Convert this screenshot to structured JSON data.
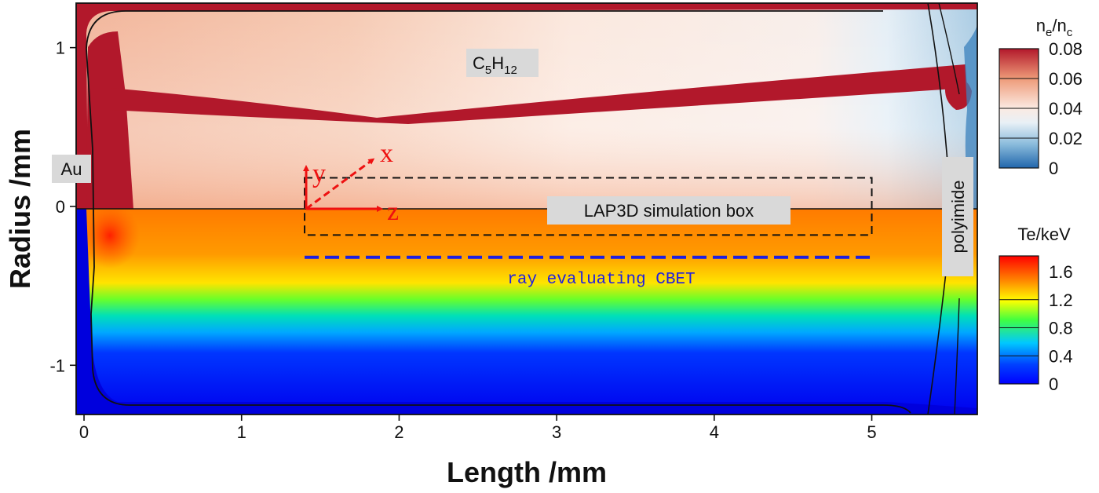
{
  "chart_data": {
    "type": "heatmap",
    "xlabel": "Length /mm",
    "ylabel": "Radius /mm",
    "xlim": [
      -0.05,
      5.67
    ],
    "ylim": [
      -1.31,
      1.28
    ],
    "x_ticks": [
      {
        "value": 0,
        "label": "0"
      },
      {
        "value": 1,
        "label": "1"
      },
      {
        "value": 2,
        "label": "2"
      },
      {
        "value": 3,
        "label": "3"
      },
      {
        "value": 4,
        "label": "4"
      },
      {
        "value": 5,
        "label": "5"
      }
    ],
    "y_ticks": [
      {
        "value": 1,
        "label": "1"
      },
      {
        "value": 0,
        "label": "0"
      },
      {
        "value": -1,
        "label": "-1"
      }
    ],
    "panels": [
      {
        "region": "upper half (Radius > 0)",
        "quantity": "ne/nc",
        "colormap": "diverging blue-white-red",
        "colors": [
          "#2166ac",
          "#6aa8d0",
          "#e8f0f6",
          "#f9e0d0",
          "#ee9a78",
          "#b2182b"
        ]
      },
      {
        "region": "lower half (Radius < 0)",
        "quantity": "Te/keV",
        "colormap": "jet",
        "colors": [
          "#0000ff",
          "#00c8ff",
          "#00ff60",
          "#ffff00",
          "#ff8c00",
          "#ff0000"
        ]
      }
    ],
    "colorbars": [
      {
        "title_base": "n",
        "title_sub1": "e",
        "title_mid": "/n",
        "title_sub2": "c",
        "ticks": [
          {
            "value": 0.08,
            "label": "0.08"
          },
          {
            "value": 0.06,
            "label": "0.06"
          },
          {
            "value": 0.04,
            "label": "0.04"
          },
          {
            "value": 0.02,
            "label": "0.02"
          },
          {
            "value": 0,
            "label": "0"
          }
        ]
      },
      {
        "title": "Te/keV",
        "ticks": [
          {
            "value": 1.6,
            "label": "1.6"
          },
          {
            "value": 1.2,
            "label": "1.2"
          },
          {
            "value": 0.8,
            "label": "0.8"
          },
          {
            "value": 0.4,
            "label": "0.4"
          },
          {
            "value": 0,
            "label": "0"
          }
        ]
      }
    ],
    "annotations": {
      "au": "Au",
      "fill_base": "C",
      "fill_sub1": "5",
      "fill_mid": "H",
      "fill_sub2": "12",
      "window": "polyimide",
      "box": "LAP3D simulation box",
      "ray": "ray evaluating CBET",
      "axis_y": "y",
      "axis_x": "x",
      "axis_z": "z"
    },
    "simulation_box": {
      "z_range": [
        1.4,
        5.0
      ],
      "r_range": [
        -0.18,
        0.18
      ]
    },
    "ray": {
      "z_range": [
        1.4,
        5.0
      ],
      "r": -0.32
    },
    "origin_marker": {
      "z": 1.4,
      "r": 0
    }
  },
  "colors": {
    "dense_red": "#b2182b",
    "ray_blue": "#1f1fe0",
    "axes_red": "#ee1111",
    "annotation_bg": "#d9d9d9"
  }
}
